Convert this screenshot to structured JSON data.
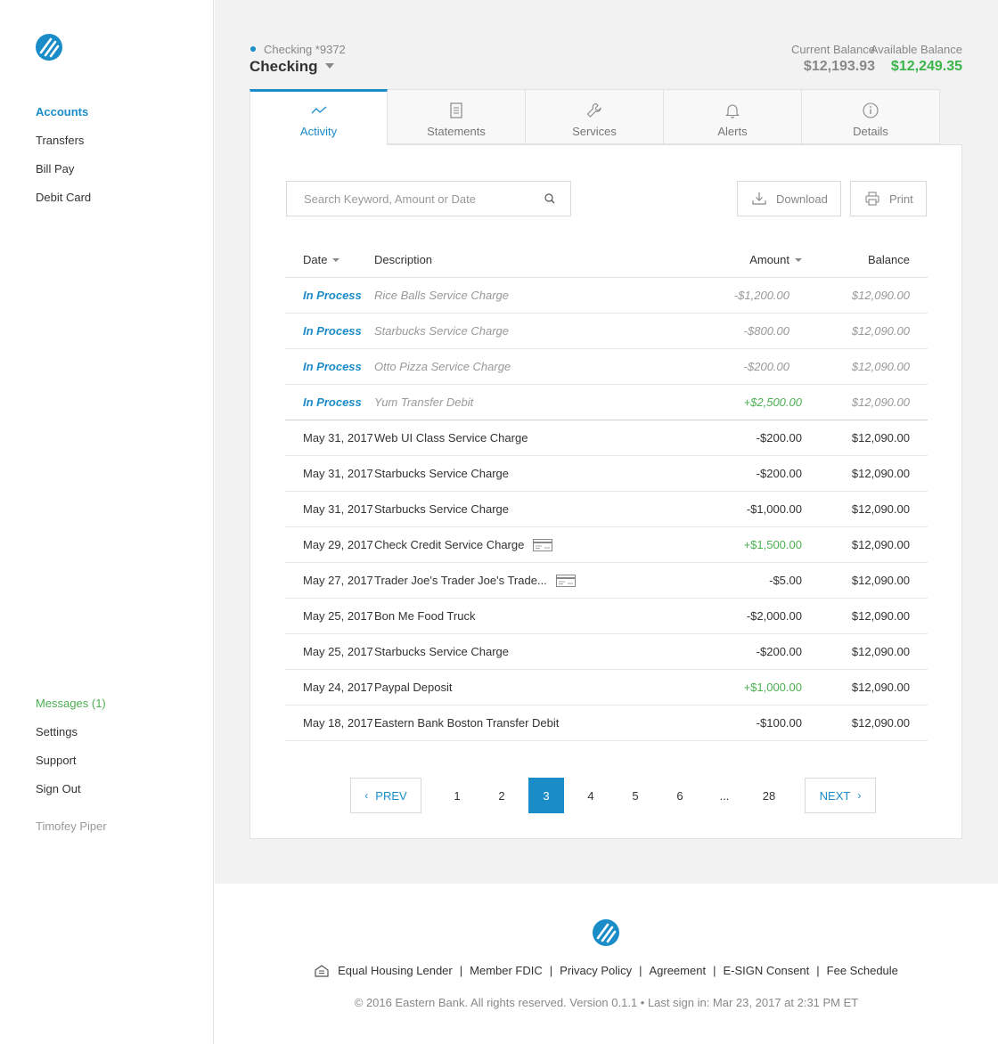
{
  "brand": {
    "logo_icon": "eastern-bank-logo-icon",
    "color": "#1a8dc9"
  },
  "sidebar": {
    "nav": [
      {
        "label": "Accounts",
        "active": true
      },
      {
        "label": "Transfers"
      },
      {
        "label": "Bill Pay"
      },
      {
        "label": "Debit Card"
      }
    ],
    "bottom": [
      {
        "label": "Messages (1)"
      },
      {
        "label": "Settings"
      },
      {
        "label": "Support"
      },
      {
        "label": "Sign Out"
      }
    ],
    "user_name": "Timofey Piper"
  },
  "account": {
    "label": "Checking *9372",
    "selected": "Checking",
    "current_balance_label": "Current Balance",
    "current_balance": "$12,193.93",
    "available_balance_label": "Available Balance",
    "available_balance": "$12,249.35"
  },
  "tabs": [
    {
      "label": "Activity",
      "icon": "activity-icon",
      "active": true
    },
    {
      "label": "Statements",
      "icon": "document-icon"
    },
    {
      "label": "Services",
      "icon": "wrench-icon"
    },
    {
      "label": "Alerts",
      "icon": "bell-icon"
    },
    {
      "label": "Details",
      "icon": "info-icon"
    }
  ],
  "toolbar": {
    "search_placeholder": "Search Keyword, Amount or Date",
    "download_label": "Download",
    "print_label": "Print"
  },
  "table": {
    "headers": {
      "date": "Date",
      "description": "Description",
      "amount": "Amount",
      "balance": "Balance"
    },
    "pending": [
      {
        "date": "In Process",
        "description": "Rice Balls Service Charge",
        "amount": "-$1,200.00",
        "balance": "$12,090.00"
      },
      {
        "date": "In Process",
        "description": "Starbucks Service Charge",
        "amount": "-$800.00",
        "balance": "$12,090.00"
      },
      {
        "date": "In Process",
        "description": "Otto Pizza Service Charge",
        "amount": "-$200.00",
        "balance": "$12,090.00"
      },
      {
        "date": "In Process",
        "description": "Yum Transfer Debit",
        "amount": "+$2,500.00",
        "balance": "$12,090.00"
      }
    ],
    "posted": [
      {
        "date": "May 31, 2017",
        "description": "Web UI Class Service Charge",
        "amount": "-$200.00",
        "balance": "$12,090.00"
      },
      {
        "date": "May 31, 2017",
        "description": "Starbucks Service Charge",
        "amount": "-$200.00",
        "balance": "$12,090.00"
      },
      {
        "date": "May 31, 2017",
        "description": "Starbucks Service Charge",
        "amount": "-$1,000.00",
        "balance": "$12,090.00"
      },
      {
        "date": "May 29, 2017",
        "description": "Check Credit Service Charge",
        "amount": "+$1,500.00",
        "balance": "$12,090.00",
        "check_icon": true
      },
      {
        "date": "May 27, 2017",
        "description": "Trader Joe's Trader Joe's Trade...",
        "amount": "-$5.00",
        "balance": "$12,090.00",
        "check_icon": true
      },
      {
        "date": "May 25, 2017",
        "description": "Bon Me Food Truck",
        "amount": "-$2,000.00",
        "balance": "$12,090.00"
      },
      {
        "date": "May 25, 2017",
        "description": "Starbucks Service Charge",
        "amount": "-$200.00",
        "balance": "$12,090.00"
      },
      {
        "date": "May 24, 2017",
        "description": "Paypal Deposit",
        "amount": "+$1,000.00",
        "balance": "$12,090.00"
      },
      {
        "date": "May 18, 2017",
        "description": "Eastern Bank Boston Transfer Debit",
        "amount": "-$100.00",
        "balance": "$12,090.00"
      }
    ]
  },
  "pagination": {
    "prev_label": "PREV",
    "next_label": "NEXT",
    "pages": [
      "1",
      "2",
      "3",
      "4",
      "5",
      "6",
      "...",
      "28"
    ],
    "current": "3"
  },
  "footer": {
    "links": [
      "Equal Housing Lender",
      "Member FDIC",
      "Privacy Policy",
      "Agreement",
      "E-SIGN Consent",
      "Fee Schedule"
    ],
    "copyright": "© 2016 Eastern Bank. All rights reserved. Version 0.1.1 • Last sign in: Mar 23, 2017 at 2:31 PM ET"
  }
}
